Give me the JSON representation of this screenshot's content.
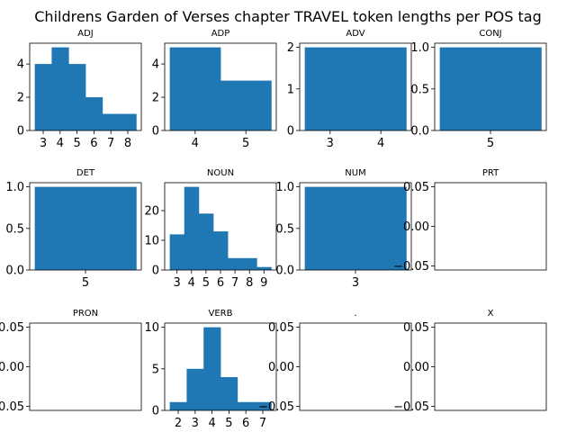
{
  "chart_data": {
    "title": "Childrens Garden of Verses chapter TRAVEL token lengths per POS tag",
    "type": "bar",
    "bar_color": "#1f77b4",
    "grid": false,
    "subplots": [
      {
        "title": "ADJ",
        "bins": [
          3,
          4,
          5,
          6,
          7,
          8
        ],
        "values": [
          4,
          5,
          4,
          2,
          1,
          1
        ],
        "xticks": [
          "3",
          "4",
          "5",
          "6",
          "7",
          "8"
        ],
        "yticks": [
          "0",
          "2",
          "4"
        ],
        "ylim": [
          0,
          5.25
        ]
      },
      {
        "title": "ADP",
        "bins": [
          4,
          5
        ],
        "values": [
          5,
          3
        ],
        "xticks": [
          "4",
          "5"
        ],
        "yticks": [
          "0",
          "2",
          "4"
        ],
        "ylim": [
          0,
          5.25
        ]
      },
      {
        "title": "ADV",
        "bins": [
          3,
          4
        ],
        "values": [
          2,
          2
        ],
        "xticks": [
          "3",
          "4"
        ],
        "yticks": [
          "0",
          "1",
          "2"
        ],
        "ylim": [
          0,
          2.1
        ]
      },
      {
        "title": "CONJ",
        "bins": [
          5
        ],
        "values": [
          1
        ],
        "xticks": [
          "5"
        ],
        "yticks": [
          "0.0",
          "0.5",
          "1.0"
        ],
        "ylim": [
          0,
          1.05
        ]
      },
      {
        "title": "DET",
        "bins": [
          5
        ],
        "values": [
          1
        ],
        "xticks": [
          "5"
        ],
        "yticks": [
          "0.0",
          "0.5",
          "1.0"
        ],
        "ylim": [
          0,
          1.05
        ]
      },
      {
        "title": "NOUN",
        "bins": [
          3,
          4,
          5,
          6,
          7,
          8,
          9
        ],
        "values": [
          12,
          28,
          19,
          13,
          4,
          4,
          1
        ],
        "xticks": [
          "3",
          "4",
          "5",
          "6",
          "7",
          "8",
          "9"
        ],
        "yticks": [
          "0",
          "10",
          "20"
        ],
        "ylim": [
          0,
          29.4
        ]
      },
      {
        "title": "NUM",
        "bins": [
          3
        ],
        "values": [
          1
        ],
        "xticks": [
          "3"
        ],
        "yticks": [
          "0.0",
          "0.5",
          "1.0"
        ],
        "ylim": [
          0,
          1.05
        ]
      },
      {
        "title": "PRT",
        "bins": [],
        "values": [],
        "xticks": [],
        "yticks": [
          "0.05",
          "0.00",
          "−0.05"
        ],
        "ylim": [
          -0.055,
          0.055
        ]
      },
      {
        "title": "PRON",
        "bins": [],
        "values": [],
        "xticks": [],
        "yticks": [
          "0.05",
          "0.00",
          "−0.05"
        ],
        "ylim": [
          -0.055,
          0.055
        ]
      },
      {
        "title": "VERB",
        "bins": [
          2,
          3,
          4,
          5,
          6,
          7
        ],
        "values": [
          1,
          5,
          10,
          4,
          1,
          1
        ],
        "xticks": [
          "2",
          "3",
          "4",
          "5",
          "6",
          "7"
        ],
        "yticks": [
          "0",
          "5",
          "10"
        ],
        "ylim": [
          0,
          10.5
        ]
      },
      {
        "title": ".",
        "bins": [],
        "values": [],
        "xticks": [],
        "yticks": [
          "0.05",
          "0.00",
          "−0.05"
        ],
        "ylim": [
          -0.055,
          0.055
        ]
      },
      {
        "title": "X",
        "bins": [],
        "values": [],
        "xticks": [],
        "yticks": [
          "0.05",
          "0.00",
          "−0.05"
        ],
        "ylim": [
          -0.055,
          0.055
        ]
      }
    ]
  }
}
